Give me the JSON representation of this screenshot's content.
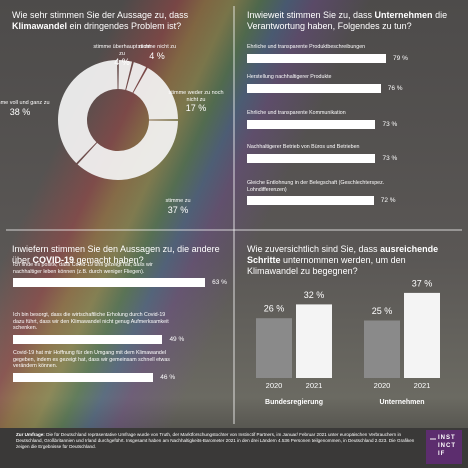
{
  "chart_data": [
    {
      "type": "pie",
      "title": [
        "Wie sehr stimmen Sie der Aussage zu, dass ",
        "Klimawandel",
        " ein dringendes Problem ist?"
      ],
      "categories": [
        "stimme überhaupt nicht zu",
        "stimme nicht zu",
        "stimme weder zu noch nicht zu",
        "stimme zu",
        "stimme voll und ganz zu"
      ],
      "values": [
        4,
        4,
        17,
        37,
        38
      ],
      "value_labels": [
        "4 %",
        "4 %",
        "17 %",
        "37 %",
        "38 %"
      ],
      "color": "#f4f4f4"
    },
    {
      "type": "hbar",
      "title": [
        "Inwieweit stimmen Sie zu, dass ",
        "Unternehmen",
        " die Verantwortung haben, Folgendes zu tun?"
      ],
      "categories": [
        "Ehrliche und transparente Produktbeschreibungen",
        "Herstellung nachhaltigerer Produkte",
        "Ehrliche und transparente Kommunikation",
        "Nachhaltigerer Betrieb von Büros und Betrieben",
        "Gleiche Entlohnung in der Belegschaft (Geschlechterspez. Lohndifferenzen)"
      ],
      "values": [
        79,
        76,
        73,
        73,
        72
      ],
      "value_labels": [
        "79 %",
        "76 %",
        "73 %",
        "73 %",
        "72 %"
      ],
      "color": "#ffffff"
    },
    {
      "type": "hbar",
      "title": [
        "Inwiefern stimmen Sie den Aussagen zu, die andere über ",
        "COVID-19",
        " gemacht haben?"
      ],
      "categories": [
        "Ich finde es positiv, dass Covid-19 uns gezeigt hat, dass wir nachhaltiger leben können (z.B. durch weniger Fliegen).",
        "Ich bin besorgt, dass die wirtschaftliche Erholung durch Covid-19 dazu führt, dass wir den Klimawandel nicht genug Aufmerksamkeit schenken.",
        "Covid-19 hat mir Hoffnung für den Umgang mit dem Klimawandel gegeben, indem es gezeigt hat, dass wir gemeinsam schnell etwas verändern können."
      ],
      "values": [
        63,
        49,
        46
      ],
      "value_labels": [
        "63 %",
        "49 %",
        "46 %"
      ],
      "color": "#ffffff"
    },
    {
      "type": "grouped-bar",
      "title": [
        "Wie zuversichtlich sind Sie, dass ",
        "ausreichende Schritte",
        " unternommen werden, um den Klimawandel zu begegnen?"
      ],
      "categories": [
        "Bundesregierung",
        "Unternehmen"
      ],
      "series": [
        {
          "name": "2020",
          "color": "#8a8a8a",
          "values": [
            26,
            25
          ],
          "value_labels": [
            "26 %",
            "25 %"
          ]
        },
        {
          "name": "2021",
          "color": "#f4f4f4",
          "values": [
            32,
            37
          ],
          "value_labels": [
            "32 %",
            "37 %"
          ]
        }
      ]
    }
  ],
  "footer": {
    "label": "Zur Umfrage:",
    "text": "Die für Deutschland repräsentative Umfrage wurde von Truth, der Marktforschungstochter von Instinctif Partners, im Januar/ Februar 2021 unter europäischen Verbrauchern in Deutschland, Großbritannien und Irland durchgeführt. Insgesamt haben am Nachhaltigkeits-Barometer 2021 in den drei Ländern 4.536 Personen teilgenommen, in Deutschland 2.023. Die Grafiken zeigen die Ergebnisse für Deutschland."
  },
  "logo": [
    "INST",
    "INCT",
    "IF"
  ]
}
